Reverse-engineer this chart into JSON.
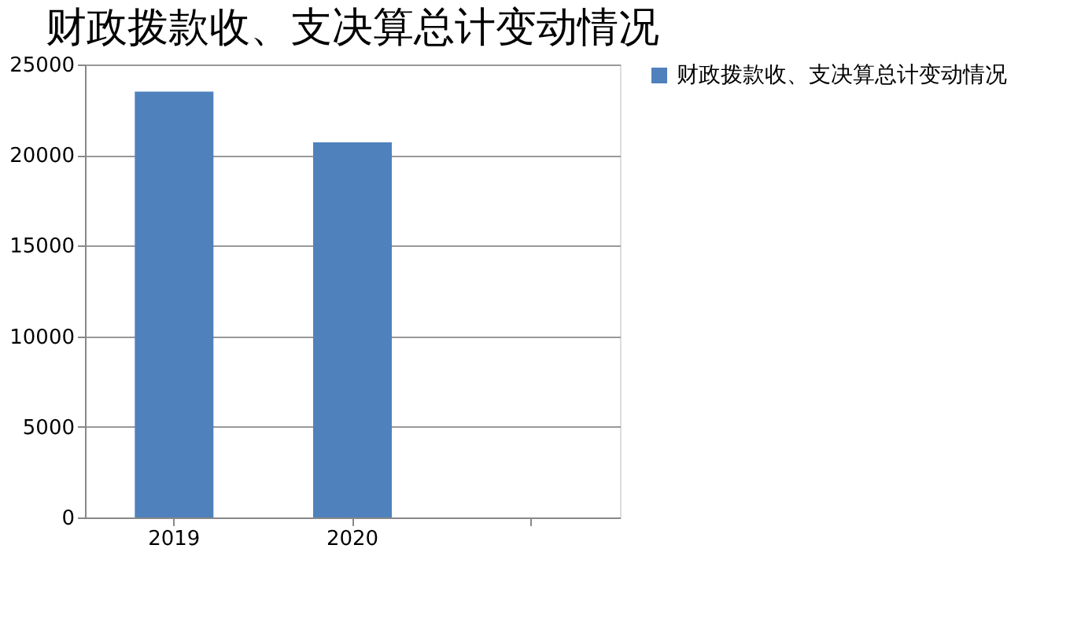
{
  "chart_data": {
    "type": "bar",
    "title": "财政拨款收、支决算总计变动情况",
    "categories": [
      "2019",
      "2020",
      null
    ],
    "series": [
      {
        "name": "财政拨款收、支决算总计变动情况",
        "color": "#4f81bd",
        "values": [
          23500,
          20700,
          null
        ]
      }
    ],
    "ylim": [
      0,
      25000
    ],
    "yticks": [
      0,
      5000,
      10000,
      15000,
      20000,
      25000
    ],
    "grid": "y",
    "legend": "right"
  }
}
